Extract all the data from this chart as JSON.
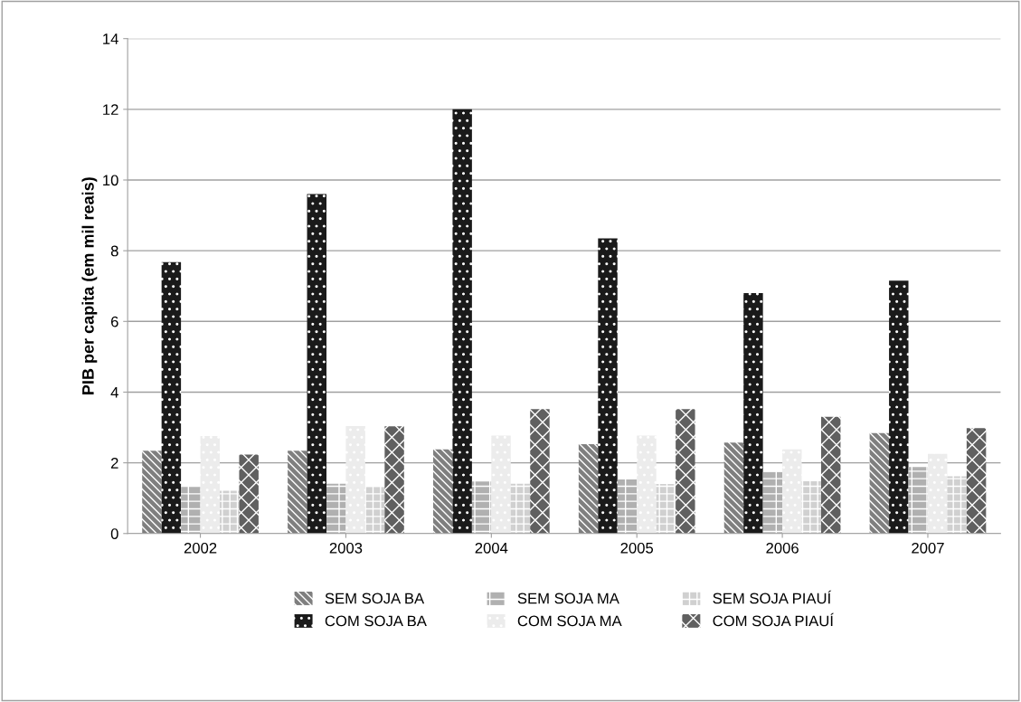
{
  "chart_data": {
    "type": "bar",
    "ylabel": "PIB per capita (em mil reais)",
    "categories": [
      "2002",
      "2003",
      "2004",
      "2005",
      "2006",
      "2007"
    ],
    "series": [
      {
        "name": "SEM SOJA BA",
        "color": "#7f7f7f",
        "values": [
          2.34,
          2.34,
          2.38,
          2.53,
          2.57,
          2.84
        ]
      },
      {
        "name": "COM SOJA BA",
        "color": "#1a1a1a",
        "values": [
          7.68,
          9.6,
          12.0,
          8.35,
          6.8,
          7.15
        ]
      },
      {
        "name": "SEM SOJA MA",
        "color": "#b0b0b0",
        "values": [
          1.34,
          1.41,
          1.47,
          1.53,
          1.74,
          1.88
        ]
      },
      {
        "name": "COM SOJA MA",
        "color": "#ececec",
        "values": [
          2.76,
          3.04,
          2.77,
          2.77,
          2.38,
          2.25
        ]
      },
      {
        "name": "SEM SOJA PIAUÍ",
        "color": "#d0d0d0",
        "values": [
          1.21,
          1.32,
          1.41,
          1.4,
          1.48,
          1.62
        ]
      },
      {
        "name": "COM SOJA PIAUÍ",
        "color": "#606060",
        "values": [
          2.23,
          3.03,
          3.52,
          3.52,
          3.3,
          2.98
        ]
      }
    ],
    "ylim": [
      0,
      14
    ],
    "yticks": [
      0,
      2,
      4,
      6,
      8,
      10,
      12,
      14
    ],
    "grid": "y",
    "legend": "bottom"
  }
}
